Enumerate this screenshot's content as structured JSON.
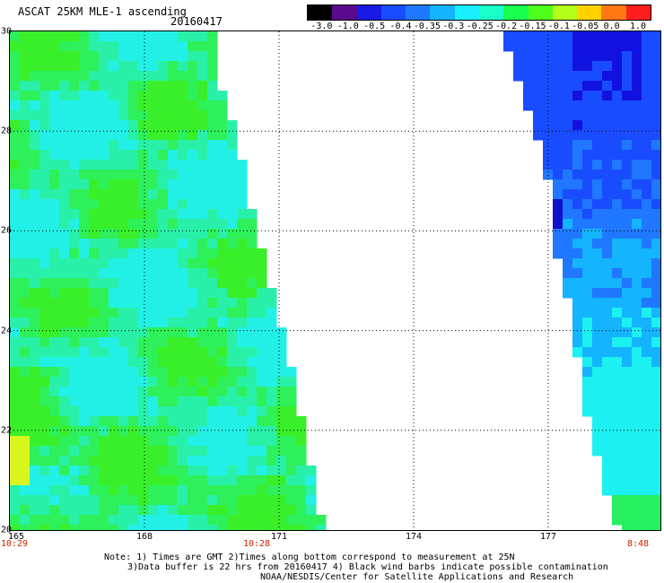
{
  "header": {
    "title": "ASCAT 25KM MLE-1 ascending",
    "date": "20160417"
  },
  "colorbar": {
    "labels": [
      "-3.0",
      "-1.0",
      "-0.5",
      "-0.4",
      "-0.35",
      "-0.3",
      "-0.25",
      "-0.2",
      "-0.15",
      "-0.1",
      "-0.05",
      "0.0",
      "1.0"
    ],
    "colors": [
      "#000000",
      "#5a0a8c",
      "#1a1ae6",
      "#1a4cff",
      "#1f78ff",
      "#14b4ff",
      "#19f0ff",
      "#19ffc8",
      "#19ff50",
      "#50ff19",
      "#b4ff19",
      "#ffd200",
      "#ff7814",
      "#ff1e1e"
    ]
  },
  "map": {
    "lat_range": [
      20,
      30
    ],
    "lon_range": [
      165,
      179.5
    ],
    "lat_labels": [
      "30",
      "28",
      "26",
      "24",
      "22",
      "20"
    ],
    "lon_labels": [
      "165",
      "168",
      "171",
      "174",
      "177"
    ],
    "time_labels": [
      {
        "lon": 165,
        "text": "10:29"
      },
      {
        "lon": 170.5,
        "text": "10:28"
      },
      {
        "lon": 179,
        "text": "8:48"
      }
    ],
    "swaths": [
      {
        "name": "left swath",
        "edge": [
          [
            165,
            30
          ],
          [
            169.7,
            30
          ],
          [
            169.7,
            29.0
          ],
          [
            170.0,
            28.0
          ],
          [
            170.4,
            26.5
          ],
          [
            170.8,
            25.0
          ],
          [
            171.2,
            23.5
          ],
          [
            171.6,
            21.9
          ],
          [
            171.9,
            20.5
          ],
          [
            172.0,
            20
          ]
        ]
      },
      {
        "name": "right swath",
        "edge": [
          [
            176.0,
            30
          ],
          [
            176.3,
            29.0
          ],
          [
            176.7,
            28.0
          ],
          [
            177.0,
            27.0
          ],
          [
            177.2,
            25.5
          ],
          [
            177.5,
            24.5
          ],
          [
            177.8,
            22.5
          ],
          [
            178.2,
            21.0
          ],
          [
            178.6,
            20
          ]
        ]
      }
    ]
  },
  "notes": {
    "line1": "Note: 1) Times are GMT 2)Times along bottom correspond to measurement at 25N",
    "line2": "3)Data buffer is 22 hrs from 20160417 4) Black wind barbs indicate possible contamination",
    "line3": "NOAA/NESDIS/Center for Satellite Applications and Research"
  }
}
